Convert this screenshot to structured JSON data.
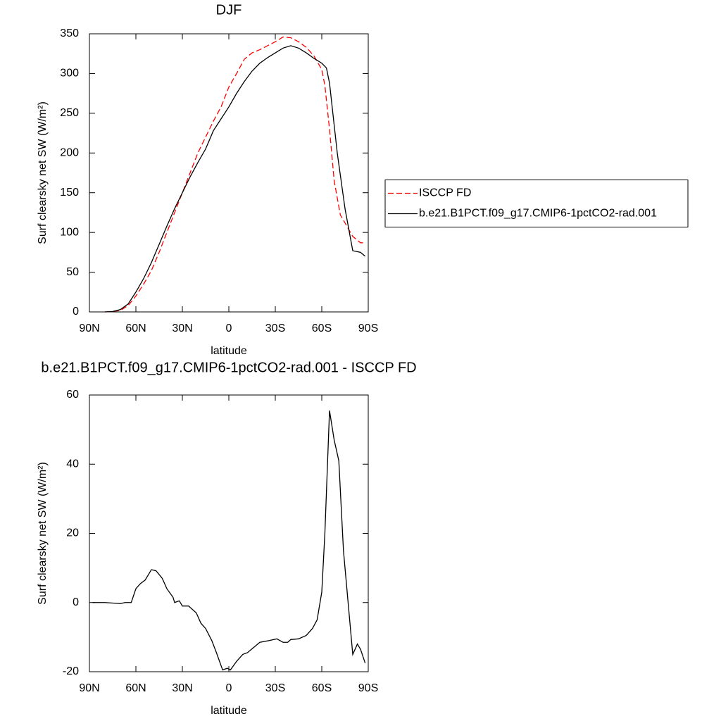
{
  "chart_data": [
    {
      "type": "line",
      "title": "DJF",
      "xlabel": "latitude",
      "ylabel": "Surf clearsky net SW (W/m²)",
      "xlim": [
        90,
        -90
      ],
      "ylim": [
        0,
        350
      ],
      "xticks": [
        {
          "value": 90,
          "label": "90N"
        },
        {
          "value": 60,
          "label": "60N"
        },
        {
          "value": 30,
          "label": "30N"
        },
        0,
        {
          "value": -30,
          "label": "30S"
        },
        {
          "value": -60,
          "label": "60S"
        },
        {
          "value": -90,
          "label": "90S"
        }
      ],
      "yticks": [
        0,
        50,
        100,
        150,
        200,
        250,
        300,
        350
      ],
      "legend": "right",
      "series": [
        {
          "name": "ISCCP FD",
          "color": "#ff0000",
          "linestyle": "dashed",
          "x": [
            80,
            75,
            70,
            65,
            60,
            55,
            50,
            45,
            40,
            35,
            30,
            25,
            20,
            15,
            10,
            5,
            0,
            -5,
            -10,
            -15,
            -20,
            -25,
            -30,
            -35,
            -40,
            -45,
            -50,
            -55,
            -60,
            -62,
            -65,
            -68,
            -72,
            -75,
            -80,
            -85,
            -88
          ],
          "values": [
            0,
            0.5,
            2,
            8,
            20,
            35,
            52,
            75,
            100,
            125,
            150,
            175,
            200,
            220,
            240,
            258,
            283,
            300,
            318,
            326,
            330,
            335,
            340,
            346,
            345,
            340,
            333,
            322,
            305,
            285,
            230,
            165,
            122,
            112,
            95,
            87,
            87
          ]
        },
        {
          "name": "b.e21.B1PCT.f09_g17.CMIP6-1pctCO2-rad.001",
          "color": "#000000",
          "linestyle": "solid",
          "x": [
            80,
            75,
            70,
            65,
            60,
            55,
            50,
            45,
            40,
            35,
            30,
            25,
            20,
            15,
            10,
            5,
            0,
            -5,
            -10,
            -15,
            -20,
            -25,
            -30,
            -35,
            -40,
            -45,
            -50,
            -55,
            -60,
            -63,
            -65,
            -70,
            -75,
            -80,
            -85,
            -88
          ],
          "values": [
            0,
            0.5,
            3,
            10,
            25,
            42,
            62,
            85,
            108,
            130,
            150,
            170,
            188,
            205,
            228,
            243,
            258,
            275,
            290,
            303,
            313,
            320,
            326,
            332,
            335,
            332,
            326,
            319,
            313,
            307,
            288,
            200,
            130,
            77,
            75,
            70
          ]
        }
      ]
    },
    {
      "type": "line",
      "title": "b.e21.B1PCT.f09_g17.CMIP6-1pctCO2-rad.001 - ISCCP FD",
      "xlabel": "latitude",
      "ylabel": "Surf clearsky net SW (W/m²)",
      "xlim": [
        90,
        -90
      ],
      "ylim": [
        -20,
        60
      ],
      "xticks": [
        {
          "value": 90,
          "label": "90N"
        },
        {
          "value": 60,
          "label": "60N"
        },
        {
          "value": 30,
          "label": "30N"
        },
        0,
        {
          "value": -30,
          "label": "30S"
        },
        {
          "value": -60,
          "label": "60S"
        },
        {
          "value": -90,
          "label": "90S"
        }
      ],
      "yticks": [
        -20,
        0,
        20,
        40,
        60
      ],
      "series": [
        {
          "color": "#000000",
          "linestyle": "solid",
          "x": [
            88,
            80,
            70,
            67,
            63,
            60,
            57,
            54,
            50,
            47,
            43,
            40,
            36,
            35,
            32,
            30,
            26,
            21,
            18,
            15,
            11,
            8,
            4,
            1,
            -1,
            -5,
            -9,
            -12,
            -16,
            -20,
            -26,
            -31,
            -35,
            -38,
            -40,
            -45,
            -50,
            -54,
            -57,
            -60,
            -62,
            -65,
            -68,
            -71,
            -74,
            -78,
            -80,
            -83,
            -85,
            -88
          ],
          "values": [
            0,
            0,
            -0.3,
            0,
            0,
            4,
            5.5,
            6.5,
            9.5,
            9.2,
            7,
            4,
            1.5,
            0,
            0.5,
            -1,
            -1,
            -3,
            -6,
            -7.5,
            -11,
            -14.5,
            -19.5,
            -19,
            -19.5,
            -17,
            -15,
            -14.5,
            -13,
            -11.5,
            -11,
            -10.5,
            -11.5,
            -11.5,
            -10.7,
            -10.5,
            -9.5,
            -7.5,
            -5,
            3,
            20,
            55.5,
            47,
            41,
            15,
            -5,
            -15,
            -12,
            -13.5,
            -17.5
          ]
        }
      ]
    }
  ]
}
